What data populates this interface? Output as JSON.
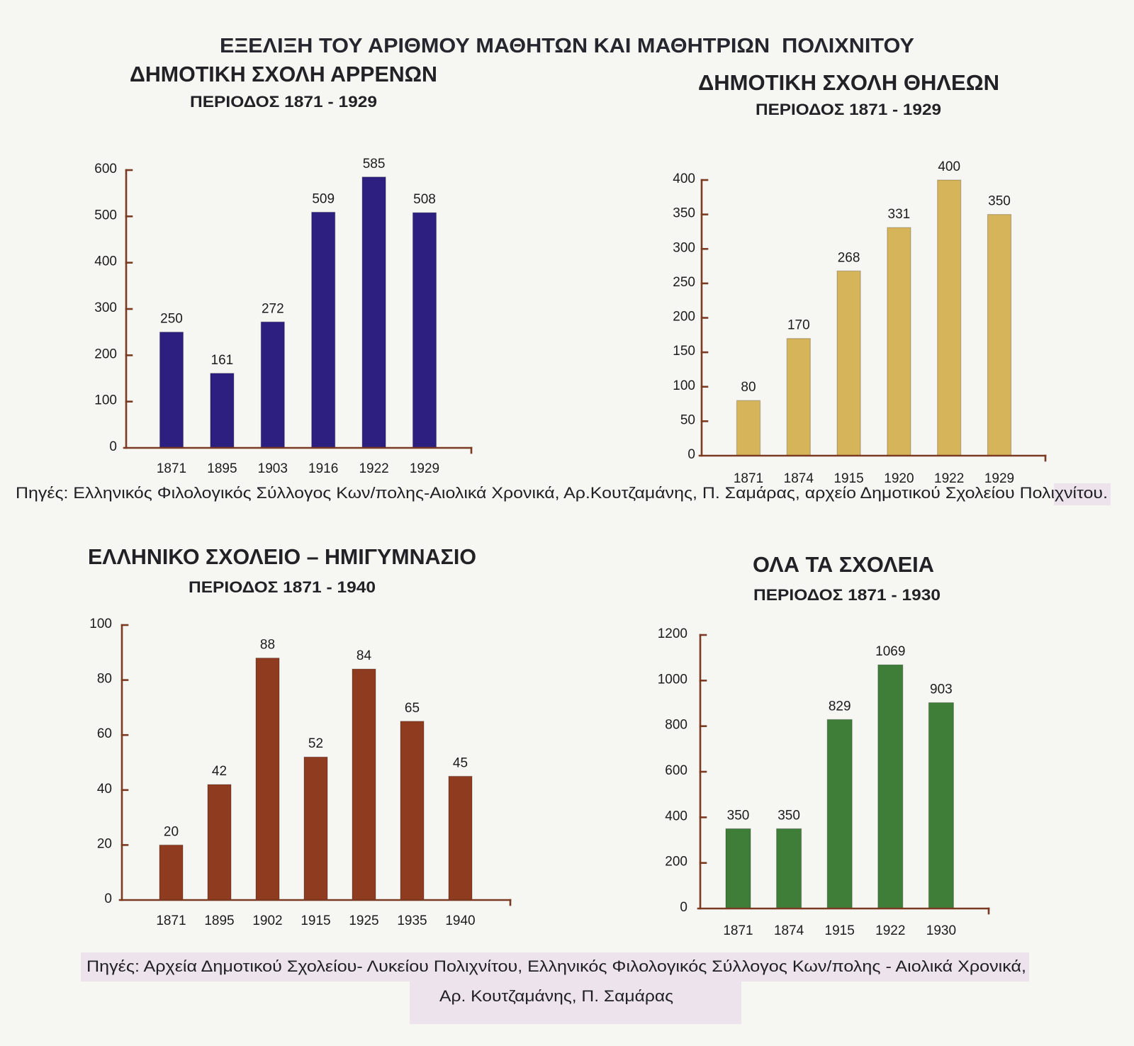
{
  "title": "ΕΞΕΛΙΞΗ ΤΟΥ ΑΡΙΘΜΟΥ ΜΑΘΗΤΩΝ ΚΑΙ ΜΑΘΗΤΡΙΩΝ  ΠΟΛΙΧΝΙΤΟΥ",
  "sources": {
    "primary": "Πηγές: Ελληνικός Φιλολογικός Σύλλογος Κων/πολης-Αιολικά Χρονικά, Αρ.Κουτζαμάνης, Π. Σαμάρας, αρχείο Δημοτικού Σχολείου Πολιχνίτου.",
    "secondary_line1": "Πηγές: Αρχεία Δημοτικού Σχολείου- Λυκείου Πολιχνίτου, Ελληνικός Φιλολογικός Σύλλογος Κων/πολης - Αιολικά Χρονικά,",
    "secondary_line2": "Αρ. Κουτζαμάνης, Π. Σαμάρας"
  },
  "chart_data": [
    {
      "type": "bar",
      "title": "ΔΗΜΟΤΙΚΗ ΣΧΟΛΗ ΑΡΡΕΝΩΝ",
      "subtitle": "ΠΕΡΙΟΔΟΣ 1871 - 1929",
      "categories": [
        "1871",
        "1895",
        "1903",
        "1916",
        "1922",
        "1929"
      ],
      "values": [
        250,
        161,
        272,
        509,
        585,
        508
      ],
      "ylim": [
        0,
        600
      ],
      "yticks": [
        0,
        100,
        200,
        300,
        400,
        500,
        600
      ],
      "grid": false,
      "color": "#2d1f80"
    },
    {
      "type": "bar",
      "title": "ΔΗΜΟΤΙΚΗ ΣΧΟΛΗ ΘΗΛΕΩΝ",
      "subtitle": "ΠΕΡΙΟΔΟΣ 1871 - 1929",
      "categories": [
        "1871",
        "1874",
        "1915",
        "1920",
        "1922",
        "1929"
      ],
      "values": [
        80,
        170,
        268,
        331,
        400,
        350
      ],
      "ylim": [
        0,
        400
      ],
      "yticks": [
        0,
        50,
        100,
        150,
        200,
        250,
        300,
        350,
        400
      ],
      "grid": false,
      "color": "#d6b45a"
    },
    {
      "type": "bar",
      "title": "ΕΛΛΗΝΙΚΟ ΣΧΟΛΕΙΟ – ΗΜΙΓΥΜΝΑΣΙΟ",
      "subtitle": "ΠΕΡΙΟΔΟΣ 1871 - 1940",
      "categories": [
        "1871",
        "1895",
        "1902",
        "1915",
        "1925",
        "1935",
        "1940"
      ],
      "values": [
        20,
        42,
        88,
        52,
        84,
        65,
        45
      ],
      "ylim": [
        0,
        100
      ],
      "yticks": [
        0,
        20,
        40,
        60,
        80,
        100
      ],
      "grid": false,
      "color": "#8f3b1f"
    },
    {
      "type": "bar",
      "title": "ΟΛΑ ΤΑ ΣΧΟΛΕΙΑ",
      "subtitle": "ΠΕΡΙΟΔΟΣ 1871 - 1930",
      "categories": [
        "1871",
        "1874",
        "1915",
        "1922",
        "1930"
      ],
      "values": [
        350,
        350,
        829,
        1069,
        903
      ],
      "ylim": [
        0,
        1200
      ],
      "yticks": [
        0,
        200,
        400,
        600,
        800,
        1000,
        1200
      ],
      "grid": false,
      "color": "#3f7e38"
    }
  ]
}
